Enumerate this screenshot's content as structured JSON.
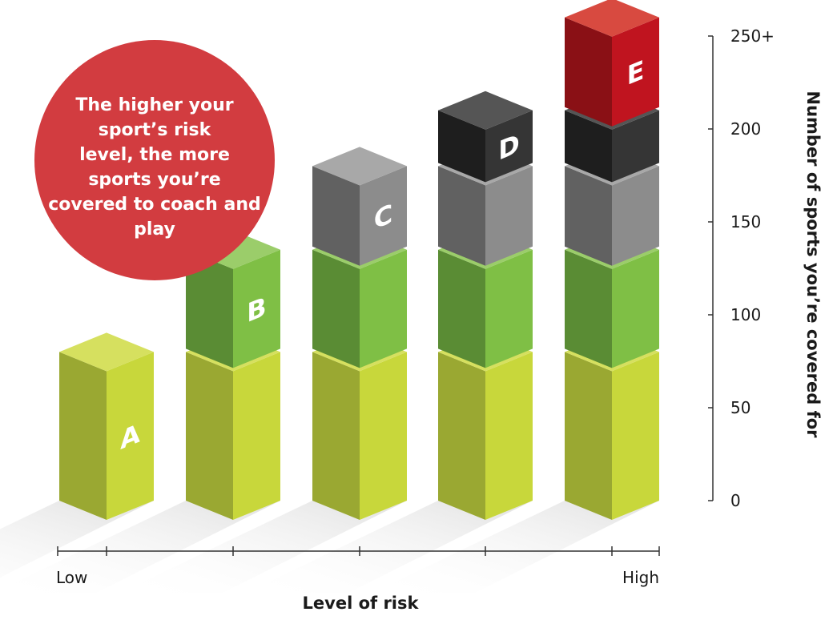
{
  "chart_data": {
    "type": "bar",
    "stacked": true,
    "callout": "The higher your sport’s risk level, the more sports you’re covered to coach and play",
    "xlabel": "Level of risk",
    "x_ends": [
      "Low",
      "High"
    ],
    "ylabel": "Number of sports you’re covered for",
    "ylim": [
      0,
      250
    ],
    "yticks": [
      "0",
      "50",
      "100",
      "150",
      "200",
      "250+"
    ],
    "grid": false,
    "categories": [
      "A",
      "B",
      "C",
      "D",
      "E"
    ],
    "series": [
      {
        "name": "A",
        "color_front": "#c8d73b",
        "color_side": "#9aa832",
        "color_top": "#d6e05f",
        "values": [
          80,
          80,
          80,
          80,
          80
        ]
      },
      {
        "name": "B",
        "color_front": "#7fbf45",
        "color_side": "#5a8c34",
        "color_top": "#9bcd6a",
        "values": [
          0,
          55,
          55,
          55,
          55
        ]
      },
      {
        "name": "C",
        "color_front": "#8c8c8c",
        "color_side": "#616161",
        "color_top": "#a8a8a8",
        "values": [
          0,
          0,
          45,
          45,
          45
        ]
      },
      {
        "name": "D",
        "color_front": "#353535",
        "color_side": "#1e1e1e",
        "color_top": "#555555",
        "values": [
          0,
          0,
          0,
          30,
          30
        ]
      },
      {
        "name": "E",
        "color_front": "#c0141f",
        "color_side": "#8a1015",
        "color_top": "#d84a40",
        "values": [
          0,
          0,
          0,
          0,
          50
        ]
      }
    ],
    "callout_color": "#d23c40"
  }
}
